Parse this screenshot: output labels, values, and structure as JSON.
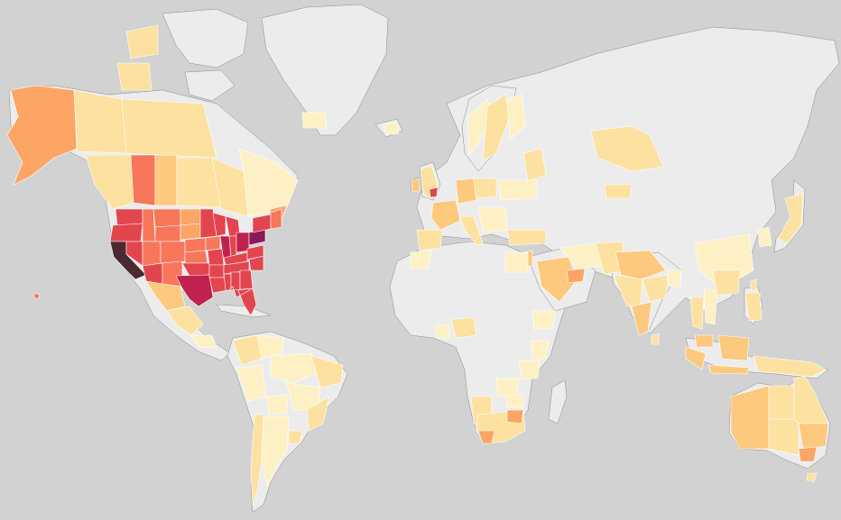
{
  "map": {
    "colors": {
      "ocean": "#d2d2d2",
      "land_no_data": "#ececec",
      "border": "#8a8a8a",
      "scale": [
        "#fdf0c4",
        "#fde1a1",
        "#fdc97e",
        "#fca565",
        "#f8765a",
        "#e3454f",
        "#c0214f",
        "#8b1a5a",
        "#4a2a30"
      ]
    },
    "legend": []
  }
}
